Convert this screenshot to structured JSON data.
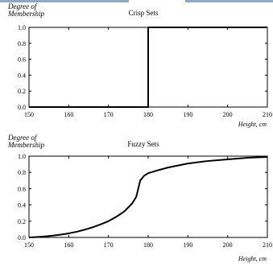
{
  "chart_data": [
    {
      "type": "line",
      "title": "Crisp Sets",
      "ylabel": "Degree of Membership",
      "ylabel_lines": [
        "Degree of",
        "Membership"
      ],
      "xlabel": "Height, cm",
      "xlim": [
        150,
        210
      ],
      "ylim": [
        0.0,
        1.0
      ],
      "x_ticks": [
        "150",
        "160",
        "170",
        "180",
        "190",
        "200",
        "210"
      ],
      "y_ticks": [
        "0.0",
        "0.2",
        "0.4",
        "0.6",
        "0.8",
        "1.0"
      ],
      "grid": false,
      "series": [
        {
          "x": [
            150,
            180,
            180,
            210
          ],
          "y": [
            0,
            0,
            1,
            1
          ]
        }
      ]
    },
    {
      "type": "line",
      "title": "Fuzzy Sets",
      "ylabel": "Degree of Membership",
      "ylabel_lines": [
        "Degree of",
        "Membership"
      ],
      "xlabel": "Height, cm",
      "xlim": [
        150,
        210
      ],
      "ylim": [
        0.0,
        1.0
      ],
      "x_ticks": [
        "150",
        "160",
        "170",
        "180",
        "190",
        "200",
        "210"
      ],
      "y_ticks": [
        "0.0",
        "0.2",
        "0.4",
        "0.6",
        "0.8",
        "1.0"
      ],
      "grid": false,
      "series": [
        {
          "x": [
            150,
            152,
            154,
            156,
            158,
            160,
            162,
            164,
            166,
            168,
            170,
            172,
            174,
            175,
            176,
            177,
            177.5,
            178,
            179,
            180,
            182,
            185,
            188,
            190,
            195,
            200,
            205,
            210
          ],
          "y": [
            0.0,
            0.005,
            0.012,
            0.022,
            0.035,
            0.05,
            0.07,
            0.095,
            0.125,
            0.16,
            0.2,
            0.255,
            0.32,
            0.37,
            0.42,
            0.5,
            0.6,
            0.7,
            0.76,
            0.79,
            0.82,
            0.86,
            0.89,
            0.91,
            0.94,
            0.96,
            0.98,
            0.99
          ]
        }
      ]
    }
  ]
}
